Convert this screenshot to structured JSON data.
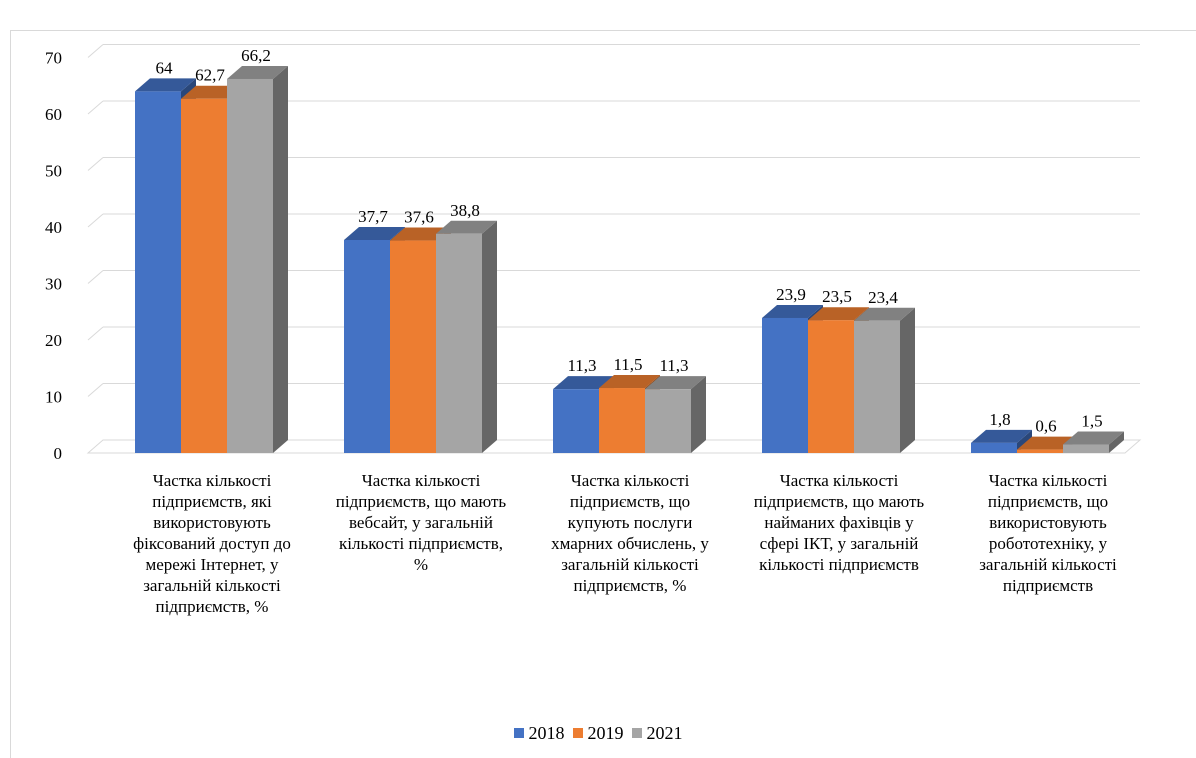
{
  "chart_data": {
    "type": "bar",
    "title": "",
    "xlabel": "",
    "ylabel": "",
    "ylim": [
      0,
      70
    ],
    "yticks": [
      0,
      10,
      20,
      30,
      40,
      50,
      60,
      70
    ],
    "grid": true,
    "legend_position": "bottom",
    "categories": [
      "Частка кількості підприємств, які використовують фіксований доступ до мережі Інтернет, у загальній кількості підприємств, %",
      "Частка кількості підприємств, що мають вебсайт, у загальній кількості підприємств, %",
      "Частка кількості підприємств, що купують послуги хмарних обчислень, у загальній кількості підприємств, %",
      "Частка кількості підприємств, що мають найманих фахівців у сфері ІКТ, у загальній кількості підприємств",
      "Частка кількості підприємств, що використовують робототехніку, у загальній кількості підприємств"
    ],
    "series": [
      {
        "name": "2018",
        "color": "#4472c4",
        "values": [
          64,
          37.7,
          11.3,
          23.9,
          1.8
        ],
        "labels": [
          "64",
          "37,7",
          "11,3",
          "23,9",
          "1,8"
        ]
      },
      {
        "name": "2019",
        "color": "#ed7d31",
        "values": [
          62.7,
          37.6,
          11.5,
          23.5,
          0.6
        ],
        "labels": [
          "62,7",
          "37,6",
          "11,5",
          "23,5",
          "0,6"
        ]
      },
      {
        "name": "2021",
        "color": "#a5a5a5",
        "values": [
          66.2,
          38.8,
          11.3,
          23.4,
          1.5
        ],
        "labels": [
          "66,2",
          "38,8",
          "11,3",
          "23,4",
          "1,5"
        ]
      }
    ]
  }
}
